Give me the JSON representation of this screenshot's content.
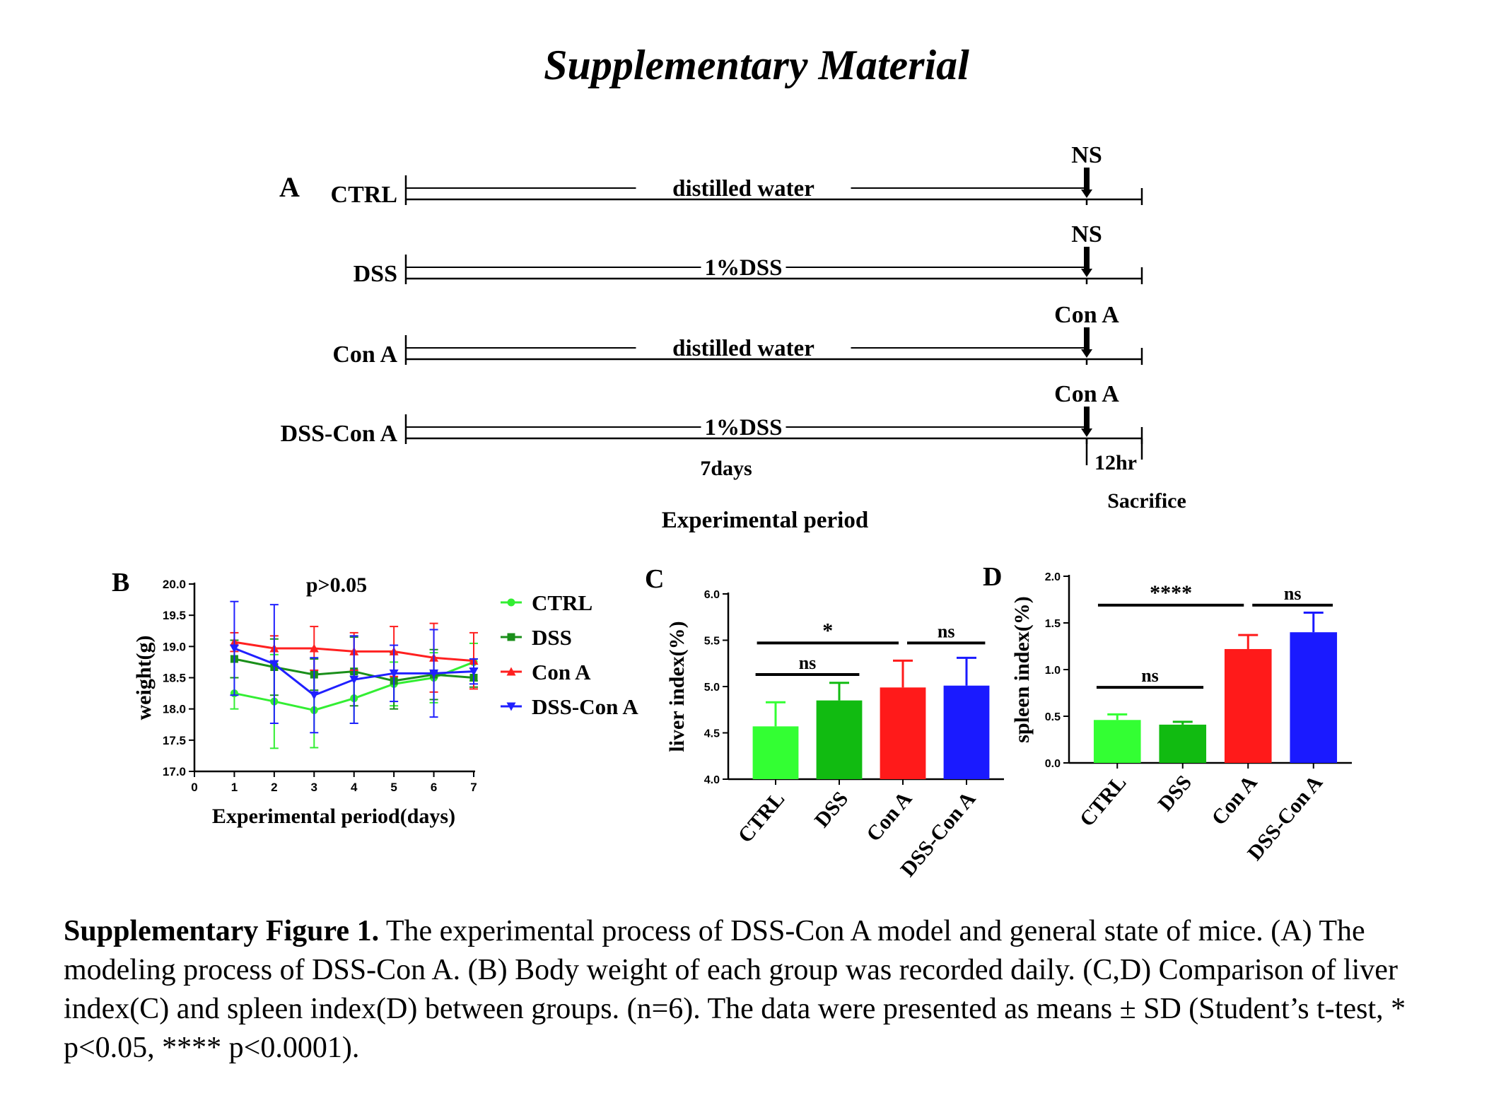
{
  "title": "Supplementary Material",
  "panelA": {
    "letter": "A",
    "groups": [
      {
        "name": "CTRL",
        "treatment": "distilled water",
        "marker": "NS"
      },
      {
        "name": "DSS",
        "treatment": "1%DSS",
        "marker": "NS"
      },
      {
        "name": "Con A",
        "treatment": "distilled water",
        "marker": "Con A"
      },
      {
        "name": "DSS-Con A",
        "treatment": "1%DSS",
        "marker": "Con A"
      }
    ],
    "days_label": "7days",
    "hr_label": "12hr",
    "sacrifice_label": "Sacrifice",
    "period_label": "Experimental period"
  },
  "chart_data": [
    {
      "panel": "B",
      "type": "line",
      "ylabel": "weight(g)",
      "xlabel": "Experimental period(days)",
      "annotation": "p>0.05",
      "xlim": [
        0,
        7
      ],
      "ylim": [
        17.0,
        20.0
      ],
      "xticks": [
        "0",
        "1",
        "2",
        "3",
        "4",
        "5",
        "6",
        "7"
      ],
      "yticks": [
        "17.0",
        "17.5",
        "18.0",
        "18.5",
        "19.0",
        "19.5",
        "20.0"
      ],
      "x": [
        1,
        2,
        3,
        4,
        5,
        6,
        7
      ],
      "legend": "right",
      "series": [
        {
          "name": "CTRL",
          "color": "#33ee33",
          "marker": "circle",
          "values": [
            18.25,
            18.12,
            17.98,
            18.17,
            18.4,
            18.5,
            18.75
          ],
          "sd": [
            0.25,
            0.75,
            0.6,
            0.4,
            0.35,
            0.4,
            0.3
          ]
        },
        {
          "name": "DSS",
          "color": "#1a8f1a",
          "marker": "square",
          "values": [
            18.8,
            18.67,
            18.55,
            18.6,
            18.45,
            18.55,
            18.5
          ],
          "sd": [
            0.3,
            0.45,
            0.25,
            0.55,
            0.45,
            0.4,
            0.15
          ]
        },
        {
          "name": "Con A",
          "color": "#ff2020",
          "marker": "triangle-up",
          "values": [
            19.07,
            18.97,
            18.97,
            18.92,
            18.92,
            18.82,
            18.77
          ],
          "sd": [
            0.15,
            0.2,
            0.35,
            0.3,
            0.4,
            0.55,
            0.45
          ]
        },
        {
          "name": "DSS-Con A",
          "color": "#2020ff",
          "marker": "triangle-down",
          "values": [
            18.97,
            18.72,
            18.22,
            18.47,
            18.57,
            18.57,
            18.6
          ],
          "sd": [
            0.75,
            0.95,
            0.6,
            0.7,
            0.45,
            0.7,
            0.2
          ]
        }
      ]
    },
    {
      "panel": "C",
      "type": "bar",
      "ylabel": "liver index(%)",
      "categories": [
        "CTRL",
        "DSS",
        "Con A",
        "DSS-Con A"
      ],
      "values": [
        4.57,
        4.85,
        4.99,
        5.01
      ],
      "sd": [
        0.26,
        0.19,
        0.29,
        0.3
      ],
      "colors": [
        "#33ff33",
        "#11bb11",
        "#ff1a1a",
        "#1a1aff"
      ],
      "ylim": [
        4.0,
        6.0
      ],
      "yticks": [
        "4.0",
        "4.5",
        "5.0",
        "5.5",
        "6.0"
      ],
      "significance": [
        {
          "from": 0,
          "to": 1,
          "label": "ns",
          "level": 5.13
        },
        {
          "from": 0,
          "to": 2,
          "label": "*",
          "level": 5.47
        },
        {
          "from": 2,
          "to": 3,
          "label": "ns",
          "level": 5.47
        }
      ]
    },
    {
      "panel": "D",
      "type": "bar",
      "ylabel": "spleen index(%)",
      "categories": [
        "CTRL",
        "DSS",
        "Con A",
        "DSS-Con A"
      ],
      "values": [
        0.46,
        0.41,
        1.22,
        1.4
      ],
      "sd": [
        0.06,
        0.03,
        0.15,
        0.21
      ],
      "colors": [
        "#33ff33",
        "#11bb11",
        "#ff1a1a",
        "#1a1aff"
      ],
      "ylim": [
        0.0,
        2.0
      ],
      "yticks": [
        "0.0",
        "0.5",
        "1.0",
        "1.5",
        "2.0"
      ],
      "significance": [
        {
          "from": 0,
          "to": 1,
          "label": "ns",
          "level": 0.81
        },
        {
          "from": 0,
          "to": 2,
          "label": "****",
          "level": 1.69
        },
        {
          "from": 2,
          "to": 3,
          "label": "ns",
          "level": 1.69
        }
      ]
    }
  ],
  "caption": {
    "bold": "Supplementary Figure 1.",
    "text": " The experimental process of DSS-Con A model and general state of mice. (A) The modeling process of DSS-Con A. (B) Body weight of each group was recorded daily. (C,D) Comparison of liver index(C) and spleen index(D) between groups. (n=6). The data were presented as means ± SD (Student’s t-test, * p<0.05, **** p<0.0001)."
  }
}
